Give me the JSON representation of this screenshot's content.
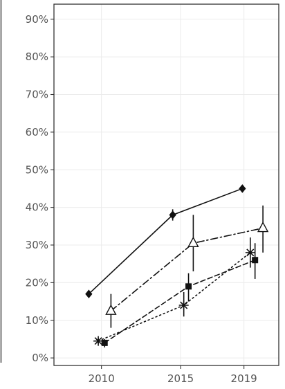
{
  "chart_data": {
    "type": "line",
    "title": "",
    "xlabel": "",
    "ylabel": "",
    "xlim": [
      2007,
      2021.2
    ],
    "ylim": [
      -2,
      94
    ],
    "x_ticks": [
      2010,
      2015,
      2019
    ],
    "x_tick_labels": [
      "2010",
      "2015",
      "2019"
    ],
    "y_ticks": [
      0,
      10,
      20,
      30,
      40,
      50,
      60,
      70,
      80,
      90
    ],
    "y_tick_labels": [
      "0%",
      "10%",
      "20%",
      "30%",
      "40%",
      "50%",
      "60%",
      "70%",
      "80%",
      "90%"
    ],
    "grid": true,
    "legend": "none",
    "series": [
      {
        "marker": "diamond",
        "line_style": "solid",
        "points": [
          {
            "x": 2009.2,
            "y": 17,
            "err": [
              16.2,
              17.8
            ]
          },
          {
            "x": 2014.5,
            "y": 38,
            "err": [
              36.5,
              39.5
            ]
          },
          {
            "x": 2018.9,
            "y": 45,
            "err": [
              44.2,
              45.8
            ]
          }
        ]
      },
      {
        "marker": "triangle",
        "line_style": "dashdot",
        "points": [
          {
            "x": 2010.6,
            "y": 12.5,
            "err": [
              8,
              17
            ]
          },
          {
            "x": 2015.8,
            "y": 30.5,
            "err": [
              23,
              38
            ]
          },
          {
            "x": 2020.2,
            "y": 34.5,
            "err": [
              28,
              40.5
            ]
          }
        ]
      },
      {
        "marker": "square",
        "line_style": "dashed",
        "points": [
          {
            "x": 2010.2,
            "y": 4,
            "err": [
              2.8,
              5
            ]
          },
          {
            "x": 2015.5,
            "y": 19,
            "err": [
              15,
              22.5
            ]
          },
          {
            "x": 2019.7,
            "y": 26,
            "err": [
              21,
              30.5
            ]
          }
        ]
      },
      {
        "marker": "asterisk",
        "line_style": "dotted",
        "points": [
          {
            "x": 2009.8,
            "y": 4.5,
            "err": [
              3.8,
              5.2
            ]
          },
          {
            "x": 2015.2,
            "y": 14,
            "err": [
              11,
              17.5
            ]
          },
          {
            "x": 2019.4,
            "y": 28,
            "err": [
              24,
              32
            ]
          }
        ]
      }
    ],
    "colors": {
      "series": "#111111",
      "axis_text": "#555555",
      "grid": "#ebebeb",
      "frame": "#333333"
    }
  }
}
